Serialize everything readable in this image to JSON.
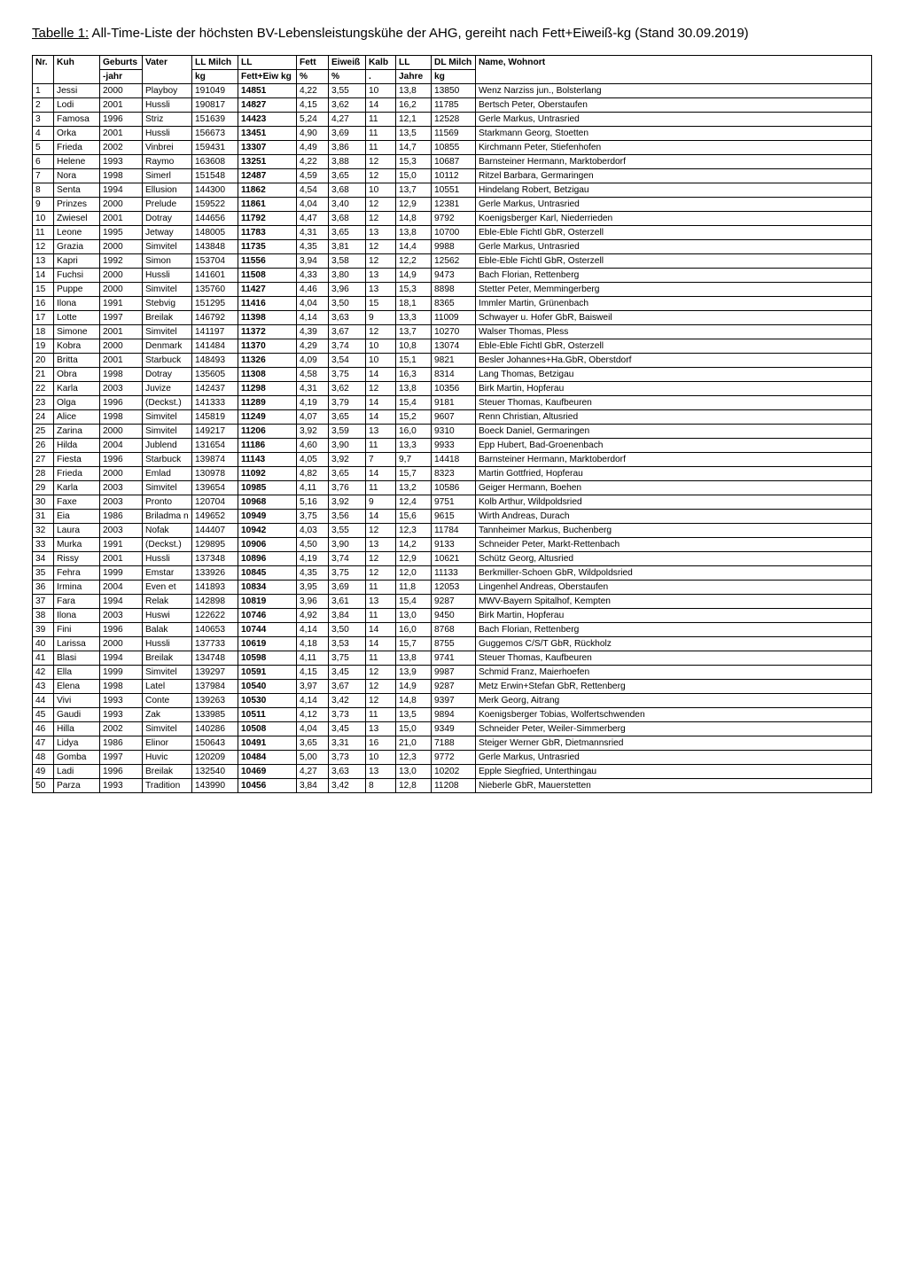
{
  "title_underline": "Tabelle 1:",
  "title_rest": " All-Time-Liste der höchsten BV-Lebensleistungskühe der AHG, gereiht nach Fett+Eiweiß-kg (Stand 30.09.2019)",
  "table": {
    "columns": [
      {
        "key": "nr",
        "h1": "Nr.",
        "h2": ""
      },
      {
        "key": "kuh",
        "h1": "Kuh",
        "h2": ""
      },
      {
        "key": "geb",
        "h1": "Geburts",
        "h2": "-jahr"
      },
      {
        "key": "vater",
        "h1": "Vater",
        "h2": ""
      },
      {
        "key": "llm",
        "h1": "LL Milch",
        "h2": "kg"
      },
      {
        "key": "ll",
        "h1": "LL",
        "h2": "Fett+Eiw kg"
      },
      {
        "key": "fett",
        "h1": "Fett",
        "h2": "%"
      },
      {
        "key": "eiw",
        "h1": "Eiweiß",
        "h2": "%"
      },
      {
        "key": "kalb",
        "h1": "Kalb",
        "h2": "."
      },
      {
        "key": "llj",
        "h1": "LL",
        "h2": "Jahre"
      },
      {
        "key": "dlm",
        "h1": "DL Milch",
        "h2": "kg"
      },
      {
        "key": "name",
        "h1": "Name, Wohnort",
        "h2": ""
      }
    ],
    "rows": [
      [
        "1",
        "Jessi",
        "2000",
        "Playboy",
        "191049",
        "14851",
        "4,22",
        "3,55",
        "10",
        "13,8",
        "13850",
        "Wenz Narziss jun., Bolsterlang"
      ],
      [
        "2",
        "Lodi",
        "2001",
        "Hussli",
        "190817",
        "14827",
        "4,15",
        "3,62",
        "14",
        "16,2",
        "11785",
        "Bertsch Peter, Oberstaufen"
      ],
      [
        "3",
        "Famosa",
        "1996",
        "Striz",
        "151639",
        "14423",
        "5,24",
        "4,27",
        "11",
        "12,1",
        "12528",
        "Gerle Markus, Untrasried"
      ],
      [
        "4",
        "Orka",
        "2001",
        "Hussli",
        "156673",
        "13451",
        "4,90",
        "3,69",
        "11",
        "13,5",
        "11569",
        "Starkmann Georg, Stoetten"
      ],
      [
        "5",
        "Frieda",
        "2002",
        "Vinbrei",
        "159431",
        "13307",
        "4,49",
        "3,86",
        "11",
        "14,7",
        "10855",
        "Kirchmann Peter, Stiefenhofen"
      ],
      [
        "6",
        "Helene",
        "1993",
        "Raymo",
        "163608",
        "13251",
        "4,22",
        "3,88",
        "12",
        "15,3",
        "10687",
        "Barnsteiner Hermann, Marktoberdorf"
      ],
      [
        "7",
        "Nora",
        "1998",
        "Simerl",
        "151548",
        "12487",
        "4,59",
        "3,65",
        "12",
        "15,0",
        "10112",
        "Ritzel Barbara, Germaringen"
      ],
      [
        "8",
        "Senta",
        "1994",
        "Ellusion",
        "144300",
        "11862",
        "4,54",
        "3,68",
        "10",
        "13,7",
        "10551",
        "Hindelang Robert, Betzigau"
      ],
      [
        "9",
        "Prinzes",
        "2000",
        "Prelude",
        "159522",
        "11861",
        "4,04",
        "3,40",
        "12",
        "12,9",
        "12381",
        "Gerle Markus, Untrasried"
      ],
      [
        "10",
        "Zwiesel",
        "2001",
        "Dotray",
        "144656",
        "11792",
        "4,47",
        "3,68",
        "12",
        "14,8",
        "9792",
        "Koenigsberger Karl, Niederrieden"
      ],
      [
        "11",
        "Leone",
        "1995",
        "Jetway",
        "148005",
        "11783",
        "4,31",
        "3,65",
        "13",
        "13,8",
        "10700",
        "Eble-Eble Fichtl GbR, Osterzell"
      ],
      [
        "12",
        "Grazia",
        "2000",
        "Simvitel",
        "143848",
        "11735",
        "4,35",
        "3,81",
        "12",
        "14,4",
        "9988",
        "Gerle Markus, Untrasried"
      ],
      [
        "13",
        "Kapri",
        "1992",
        "Simon",
        "153704",
        "11556",
        "3,94",
        "3,58",
        "12",
        "12,2",
        "12562",
        "Eble-Eble Fichtl GbR, Osterzell"
      ],
      [
        "14",
        "Fuchsi",
        "2000",
        "Hussli",
        "141601",
        "11508",
        "4,33",
        "3,80",
        "13",
        "14,9",
        "9473",
        "Bach Florian, Rettenberg"
      ],
      [
        "15",
        "Puppe",
        "2000",
        "Simvitel",
        "135760",
        "11427",
        "4,46",
        "3,96",
        "13",
        "15,3",
        "8898",
        "Stetter Peter, Memmingerberg"
      ],
      [
        "16",
        "Ilona",
        "1991",
        "Stebvig",
        "151295",
        "11416",
        "4,04",
        "3,50",
        "15",
        "18,1",
        "8365",
        "Immler Martin, Grünenbach"
      ],
      [
        "17",
        "Lotte",
        "1997",
        "Breilak",
        "146792",
        "11398",
        "4,14",
        "3,63",
        "9",
        "13,3",
        "11009",
        "Schwayer u. Hofer GbR, Baisweil"
      ],
      [
        "18",
        "Simone",
        "2001",
        "Simvitel",
        "141197",
        "11372",
        "4,39",
        "3,67",
        "12",
        "13,7",
        "10270",
        "Walser Thomas, Pless"
      ],
      [
        "19",
        "Kobra",
        "2000",
        "Denmark",
        "141484",
        "11370",
        "4,29",
        "3,74",
        "10",
        "10,8",
        "13074",
        "Eble-Eble Fichtl GbR, Osterzell"
      ],
      [
        "20",
        "Britta",
        "2001",
        "Starbuck",
        "148493",
        "11326",
        "4,09",
        "3,54",
        "10",
        "15,1",
        "9821",
        "Besler Johannes+Ha.GbR, Oberstdorf"
      ],
      [
        "21",
        "Obra",
        "1998",
        "Dotray",
        "135605",
        "11308",
        "4,58",
        "3,75",
        "14",
        "16,3",
        "8314",
        "Lang Thomas, Betzigau"
      ],
      [
        "22",
        "Karla",
        "2003",
        "Juvize",
        "142437",
        "11298",
        "4,31",
        "3,62",
        "12",
        "13,8",
        "10356",
        "Birk Martin, Hopferau"
      ],
      [
        "23",
        "Olga",
        "1996",
        "(Deckst.)",
        "141333",
        "11289",
        "4,19",
        "3,79",
        "14",
        "15,4",
        "9181",
        "Steuer Thomas, Kaufbeuren"
      ],
      [
        "24",
        "Alice",
        "1998",
        "Simvitel",
        "145819",
        "11249",
        "4,07",
        "3,65",
        "14",
        "15,2",
        "9607",
        "Renn Christian, Altusried"
      ],
      [
        "25",
        "Zarina",
        "2000",
        "Simvitel",
        "149217",
        "11206",
        "3,92",
        "3,59",
        "13",
        "16,0",
        "9310",
        "Boeck Daniel, Germaringen"
      ],
      [
        "26",
        "Hilda",
        "2004",
        "Jublend",
        "131654",
        "11186",
        "4,60",
        "3,90",
        "11",
        "13,3",
        "9933",
        "Epp Hubert, Bad-Groenenbach"
      ],
      [
        "27",
        "Fiesta",
        "1996",
        "Starbuck",
        "139874",
        "11143",
        "4,05",
        "3,92",
        "7",
        "9,7",
        "14418",
        "Barnsteiner Hermann, Marktoberdorf"
      ],
      [
        "28",
        "Frieda",
        "2000",
        "Emlad",
        "130978",
        "11092",
        "4,82",
        "3,65",
        "14",
        "15,7",
        "8323",
        "Martin Gottfried, Hopferau"
      ],
      [
        "29",
        "Karla",
        "2003",
        "Simvitel",
        "139654",
        "10985",
        "4,11",
        "3,76",
        "11",
        "13,2",
        "10586",
        "Geiger Hermann, Boehen"
      ],
      [
        "30",
        "Faxe",
        "2003",
        "Pronto",
        "120704",
        "10968",
        "5,16",
        "3,92",
        "9",
        "12,4",
        "9751",
        "Kolb Arthur, Wildpoldsried"
      ],
      [
        "31",
        "Eia",
        "1986",
        "Briladma\nn",
        "149652",
        "10949",
        "3,75",
        "3,56",
        "14",
        "15,6",
        "9615",
        "Wirth Andreas, Durach"
      ],
      [
        "32",
        "Laura",
        "2003",
        "Nofak",
        "144407",
        "10942",
        "4,03",
        "3,55",
        "12",
        "12,3",
        "11784",
        "Tannheimer Markus, Buchenberg"
      ],
      [
        "33",
        "Murka",
        "1991",
        "(Deckst.)",
        "129895",
        "10906",
        "4,50",
        "3,90",
        "13",
        "14,2",
        "9133",
        "Schneider Peter, Markt-Rettenbach"
      ],
      [
        "34",
        "Rissy",
        "2001",
        "Hussli",
        "137348",
        "10896",
        "4,19",
        "3,74",
        "12",
        "12,9",
        "10621",
        "Schütz Georg, Altusried"
      ],
      [
        "35",
        "Fehra",
        "1999",
        "Emstar",
        "133926",
        "10845",
        "4,35",
        "3,75",
        "12",
        "12,0",
        "11133",
        "Berkmiller-Schoen GbR, Wildpoldsried"
      ],
      [
        "36",
        "Irmina",
        "2004",
        "Even et",
        "141893",
        "10834",
        "3,95",
        "3,69",
        "11",
        "11,8",
        "12053",
        "Lingenhel Andreas, Oberstaufen"
      ],
      [
        "37",
        "Fara",
        "1994",
        "Relak",
        "142898",
        "10819",
        "3,96",
        "3,61",
        "13",
        "15,4",
        "9287",
        "MWV-Bayern Spitalhof, Kempten"
      ],
      [
        "38",
        "Ilona",
        "2003",
        "Huswi",
        "122622",
        "10746",
        "4,92",
        "3,84",
        "11",
        "13,0",
        "9450",
        "Birk Martin, Hopferau"
      ],
      [
        "39",
        "Fini",
        "1996",
        "Balak",
        "140653",
        "10744",
        "4,14",
        "3,50",
        "14",
        "16,0",
        "8768",
        "Bach Florian, Rettenberg"
      ],
      [
        "40",
        "Larissa",
        "2000",
        "Hussli",
        "137733",
        "10619",
        "4,18",
        "3,53",
        "14",
        "15,7",
        "8755",
        "Guggemos C/S/T GbR, Rückholz"
      ],
      [
        "41",
        "Blasi",
        "1994",
        "Breilak",
        "134748",
        "10598",
        "4,11",
        "3,75",
        "11",
        "13,8",
        "9741",
        "Steuer Thomas, Kaufbeuren"
      ],
      [
        "42",
        "Ella",
        "1999",
        "Simvitel",
        "139297",
        "10591",
        "4,15",
        "3,45",
        "12",
        "13,9",
        "9987",
        "Schmid Franz, Maierhoefen"
      ],
      [
        "43",
        "Elena",
        "1998",
        "Latel",
        "137984",
        "10540",
        "3,97",
        "3,67",
        "12",
        "14,9",
        "9287",
        "Metz Erwin+Stefan GbR, Rettenberg"
      ],
      [
        "44",
        "Vivi",
        "1993",
        "Conte",
        "139263",
        "10530",
        "4,14",
        "3,42",
        "12",
        "14,8",
        "9397",
        "Merk Georg, Aitrang"
      ],
      [
        "45",
        "Gaudi",
        "1993",
        "Zak",
        "133985",
        "10511",
        "4,12",
        "3,73",
        "11",
        "13,5",
        "9894",
        "Koenigsberger Tobias, Wolfertschwenden"
      ],
      [
        "46",
        "Hilla",
        "2002",
        "Simvitel",
        "140286",
        "10508",
        "4,04",
        "3,45",
        "13",
        "15,0",
        "9349",
        "Schneider Peter, Weiler-Simmerberg"
      ],
      [
        "47",
        "Lidya",
        "1986",
        "Elinor",
        "150643",
        "10491",
        "3,65",
        "3,31",
        "16",
        "21,0",
        "7188",
        "Steiger Werner GbR, Dietmannsried"
      ],
      [
        "48",
        "Gomba",
        "1997",
        "Huvic",
        "120209",
        "10484",
        "5,00",
        "3,73",
        "10",
        "12,3",
        "9772",
        "Gerle Markus, Untrasried"
      ],
      [
        "49",
        "Ladi",
        "1996",
        "Breilak",
        "132540",
        "10469",
        "4,27",
        "3,63",
        "13",
        "13,0",
        "10202",
        "Epple Siegfried, Unterthingau"
      ],
      [
        "50",
        "Parza",
        "1993",
        "Tradition",
        "143990",
        "10456",
        "3,84",
        "3,42",
        "8",
        "12,8",
        "11208",
        "Nieberle GbR, Mauerstetten"
      ]
    ],
    "bold_col_index": 5
  }
}
